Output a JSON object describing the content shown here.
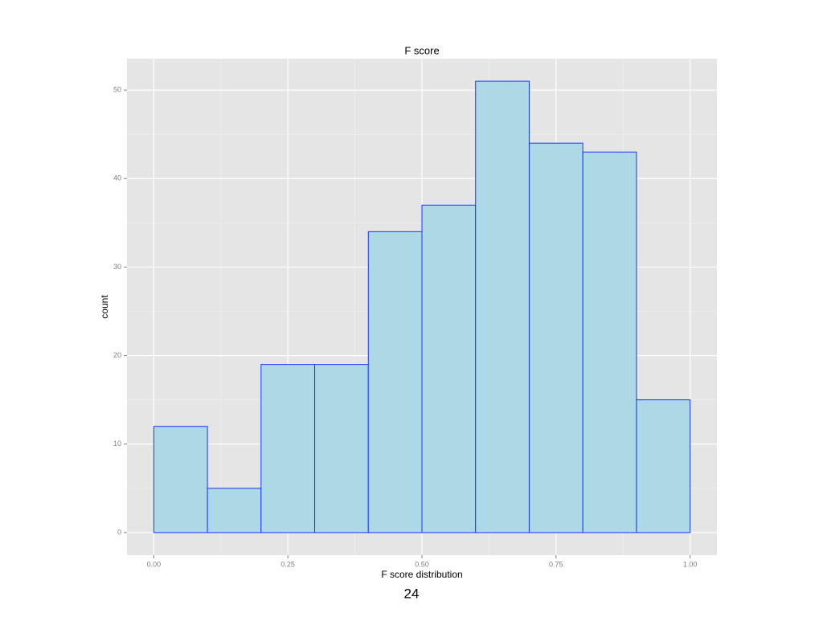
{
  "chart_data": {
    "type": "histogram",
    "title": "F score",
    "x_label": "F score distribution",
    "y_label": "count",
    "bins": [
      0,
      0.1,
      0.2,
      0.3,
      0.4,
      0.5,
      0.6,
      0.7,
      0.8,
      0.9,
      1.0
    ],
    "counts": [
      12,
      5,
      19,
      19,
      34,
      37,
      51,
      44,
      43,
      15
    ],
    "color": "#add8e6",
    "edge_color": "#1a35ff",
    "xlim": [
      -0.05,
      1.05
    ],
    "xticks": [
      {
        "value": 0,
        "label": "0.00"
      },
      {
        "value": 0.25,
        "label": "0.25"
      },
      {
        "value": 0.5,
        "label": "0.50"
      },
      {
        "value": 0.75,
        "label": "0.75"
      },
      {
        "value": 1,
        "label": "1.00"
      }
    ],
    "ylim": [
      -2.55,
      53.55
    ],
    "yticks": [
      0,
      10,
      20,
      30,
      40,
      50
    ],
    "grid": true
  },
  "page_number": "24"
}
